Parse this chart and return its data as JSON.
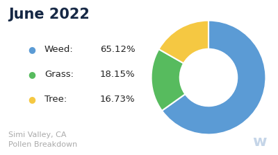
{
  "title": "June 2022",
  "subtitle": "Simi Valley, CA\nPollen Breakdown",
  "title_color": "#152744",
  "subtitle_color": "#aaaaaa",
  "slices": [
    65.12,
    18.15,
    16.73
  ],
  "labels": [
    "Weed",
    "Grass",
    "Tree"
  ],
  "percentages": [
    "65.12%",
    "18.15%",
    "16.73%"
  ],
  "colors": [
    "#5b9bd5",
    "#57bb5e",
    "#f5c842"
  ],
  "background_color": "#ffffff",
  "startangle": 90
}
